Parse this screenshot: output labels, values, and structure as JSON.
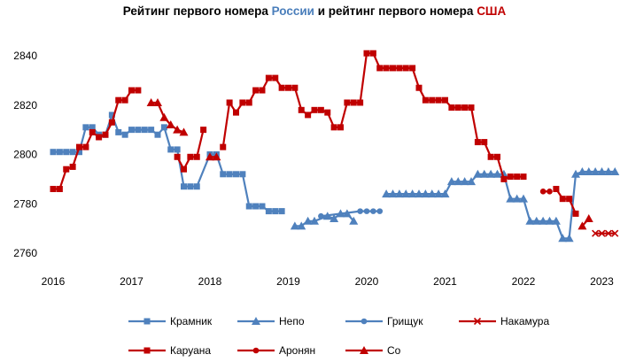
{
  "chart_data": {
    "type": "line",
    "title": {
      "parts": [
        {
          "text": "Рейтинг первого номера ",
          "color": "#000000"
        },
        {
          "text": "России",
          "color": "#4a7ebb"
        },
        {
          "text": " и рейтинг первого номера ",
          "color": "#000000"
        },
        {
          "text": "США",
          "color": "#c00000"
        }
      ]
    },
    "xlabel": "",
    "ylabel": "",
    "x_unit": "month index from Jan 2016",
    "xlim": [
      2016,
      2023
    ],
    "ylim": [
      2760,
      2840
    ],
    "x_ticks": [
      "2016",
      "2017",
      "2018",
      "2019",
      "2020",
      "2021",
      "2022",
      "2023"
    ],
    "y_ticks": [
      "2760",
      "2780",
      "2800",
      "2820",
      "2840"
    ],
    "grid": false,
    "legend_position": "bottom",
    "colors": {
      "russia": "#4f81bd",
      "usa": "#c00000"
    },
    "series": [
      {
        "name": "Крамник",
        "color": "#4f81bd",
        "marker": "square",
        "group": "russia",
        "points": [
          [
            0,
            2801
          ],
          [
            1,
            2801
          ],
          [
            2,
            2801
          ],
          [
            3,
            2801
          ],
          [
            4,
            2801
          ],
          [
            5,
            2811
          ],
          [
            6,
            2811
          ],
          [
            7,
            2808
          ],
          [
            8,
            2808
          ],
          [
            9,
            2816
          ],
          [
            10,
            2809
          ],
          [
            11,
            2808
          ],
          [
            12,
            2810
          ],
          [
            13,
            2810
          ],
          [
            14,
            2810
          ],
          [
            15,
            2810
          ],
          [
            16,
            2808
          ],
          [
            17,
            2811
          ],
          [
            18,
            2802
          ],
          [
            19,
            2802
          ],
          [
            20,
            2787
          ],
          [
            21,
            2787
          ],
          [
            22,
            2787
          ],
          [
            24,
            2800
          ],
          [
            25,
            2800
          ],
          [
            26,
            2792
          ],
          [
            27,
            2792
          ],
          [
            28,
            2792
          ],
          [
            29,
            2792
          ],
          [
            30,
            2779
          ],
          [
            31,
            2779
          ],
          [
            32,
            2779
          ],
          [
            33,
            2777
          ],
          [
            34,
            2777
          ],
          [
            35,
            2777
          ]
        ]
      },
      {
        "name": "Непо",
        "color": "#4f81bd",
        "marker": "triangle",
        "group": "russia",
        "points": [
          [
            37,
            2771
          ],
          [
            38,
            2771
          ],
          [
            39,
            2773
          ],
          [
            40,
            2773
          ],
          [
            42,
            2775
          ],
          [
            43,
            2774
          ],
          [
            44,
            2776
          ],
          [
            45,
            2776
          ],
          [
            46,
            2773
          ],
          [
            null,
            null
          ],
          [
            51,
            2784
          ],
          [
            52,
            2784
          ],
          [
            53,
            2784
          ],
          [
            54,
            2784
          ],
          [
            55,
            2784
          ],
          [
            56,
            2784
          ],
          [
            57,
            2784
          ],
          [
            58,
            2784
          ],
          [
            59,
            2784
          ],
          [
            60,
            2784
          ],
          [
            61,
            2789
          ],
          [
            62,
            2789
          ],
          [
            63,
            2789
          ],
          [
            64,
            2789
          ],
          [
            65,
            2792
          ],
          [
            66,
            2792
          ],
          [
            67,
            2792
          ],
          [
            68,
            2792
          ],
          [
            69,
            2792
          ],
          [
            70,
            2782
          ],
          [
            71,
            2782
          ],
          [
            72,
            2782
          ],
          [
            73,
            2773
          ],
          [
            74,
            2773
          ],
          [
            75,
            2773
          ],
          [
            76,
            2773
          ],
          [
            77,
            2773
          ],
          [
            78,
            2766
          ],
          [
            79,
            2766
          ],
          [
            80,
            2792
          ],
          [
            81,
            2793
          ],
          [
            82,
            2793
          ],
          [
            83,
            2793
          ],
          [
            84,
            2793
          ],
          [
            85,
            2793
          ],
          [
            86,
            2793
          ]
        ]
      },
      {
        "name": "Грищук",
        "color": "#4f81bd",
        "marker": "circle",
        "group": "russia",
        "points": [
          [
            41,
            2775
          ],
          [
            47,
            2777
          ],
          [
            48,
            2777
          ],
          [
            49,
            2777
          ],
          [
            50,
            2777
          ]
        ]
      },
      {
        "name": "Накамура",
        "color": "#c00000",
        "marker": "cross",
        "group": "usa",
        "points": [
          [
            83,
            2768
          ],
          [
            84,
            2768
          ],
          [
            85,
            2768
          ],
          [
            86,
            2768
          ]
        ]
      },
      {
        "name": "Каруана",
        "color": "#c00000",
        "marker": "square",
        "group": "usa",
        "points": [
          [
            0,
            2786
          ],
          [
            1,
            2786
          ],
          [
            2,
            2794
          ],
          [
            3,
            2795
          ],
          [
            4,
            2803
          ],
          [
            5,
            2803
          ],
          [
            6,
            2809
          ],
          [
            7,
            2807
          ],
          [
            8,
            2808
          ],
          [
            9,
            2813
          ],
          [
            10,
            2822
          ],
          [
            11,
            2822
          ],
          [
            12,
            2826
          ],
          [
            13,
            2826
          ],
          [
            null,
            null
          ],
          [
            19,
            2799
          ],
          [
            20,
            2794
          ],
          [
            21,
            2799
          ],
          [
            22,
            2799
          ],
          [
            23,
            2810
          ],
          [
            null,
            null
          ],
          [
            26,
            2803
          ],
          [
            27,
            2821
          ],
          [
            28,
            2817
          ],
          [
            29,
            2821
          ],
          [
            30,
            2821
          ],
          [
            31,
            2826
          ],
          [
            32,
            2826
          ],
          [
            33,
            2831
          ],
          [
            34,
            2831
          ],
          [
            35,
            2827
          ],
          [
            36,
            2827
          ],
          [
            37,
            2827
          ],
          [
            38,
            2818
          ],
          [
            39,
            2816
          ],
          [
            40,
            2818
          ],
          [
            41,
            2818
          ],
          [
            42,
            2817
          ],
          [
            43,
            2811
          ],
          [
            44,
            2811
          ],
          [
            45,
            2821
          ],
          [
            46,
            2821
          ],
          [
            47,
            2821
          ],
          [
            48,
            2841
          ],
          [
            49,
            2841
          ],
          [
            50,
            2835
          ],
          [
            51,
            2835
          ],
          [
            52,
            2835
          ],
          [
            53,
            2835
          ],
          [
            54,
            2835
          ],
          [
            55,
            2835
          ],
          [
            56,
            2827
          ],
          [
            57,
            2822
          ],
          [
            58,
            2822
          ],
          [
            59,
            2822
          ],
          [
            60,
            2822
          ],
          [
            61,
            2819
          ],
          [
            62,
            2819
          ],
          [
            63,
            2819
          ],
          [
            64,
            2819
          ],
          [
            65,
            2805
          ],
          [
            66,
            2805
          ],
          [
            67,
            2799
          ],
          [
            68,
            2799
          ],
          [
            69,
            2790
          ],
          [
            70,
            2791
          ],
          [
            71,
            2791
          ],
          [
            72,
            2791
          ],
          [
            null,
            null
          ],
          [
            77,
            2786
          ],
          [
            78,
            2782
          ],
          [
            79,
            2782
          ],
          [
            80,
            2776
          ]
        ]
      },
      {
        "name": "Аронян",
        "color": "#c00000",
        "marker": "circle",
        "group": "usa",
        "points": [
          [
            75,
            2785
          ],
          [
            76,
            2785
          ]
        ]
      },
      {
        "name": "Со",
        "color": "#c00000",
        "marker": "triangle",
        "group": "usa",
        "points": [
          [
            15,
            2821
          ],
          [
            16,
            2821
          ],
          [
            17,
            2815
          ],
          [
            18,
            2812
          ],
          [
            19,
            2810
          ],
          [
            20,
            2809
          ],
          [
            null,
            null
          ],
          [
            24,
            2799
          ],
          [
            25,
            2799
          ],
          [
            null,
            null
          ],
          [
            81,
            2771
          ],
          [
            82,
            2774
          ]
        ]
      }
    ],
    "legend": [
      [
        "Крамник",
        "Непо",
        "Грищук",
        "Накамура"
      ],
      [
        "Каруана",
        "Аронян",
        "Со"
      ]
    ]
  }
}
